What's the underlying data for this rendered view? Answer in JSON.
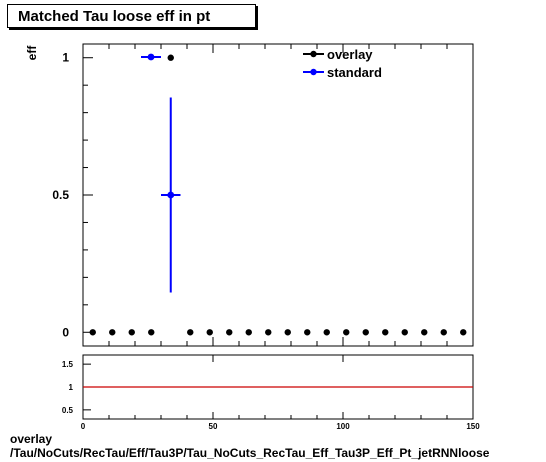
{
  "chart_data": [
    {
      "type": "scatter",
      "title": "Matched Tau loose eff in pt",
      "ylabel": "eff",
      "xlim": [
        0,
        150
      ],
      "ylim": [
        -0.05,
        1.05
      ],
      "y_ticks": [
        "0",
        "0.5",
        "1"
      ],
      "y_tick_values": [
        0,
        0.5,
        1
      ],
      "x_ticks": [
        "0",
        "50",
        "100",
        "150"
      ],
      "x_tick_values": [
        0,
        50,
        100,
        150
      ],
      "legend_position": "top-right",
      "series": [
        {
          "name": "overlay",
          "color": "#000000",
          "points": [
            {
              "x": 3.75,
              "y": 0
            },
            {
              "x": 11.25,
              "y": 0
            },
            {
              "x": 18.75,
              "y": 0
            },
            {
              "x": 26.25,
              "y": 0
            },
            {
              "x": 33.75,
              "y": 1
            },
            {
              "x": 41.25,
              "y": 0
            },
            {
              "x": 48.75,
              "y": 0
            },
            {
              "x": 56.25,
              "y": 0
            },
            {
              "x": 63.75,
              "y": 0
            },
            {
              "x": 71.25,
              "y": 0
            },
            {
              "x": 78.75,
              "y": 0
            },
            {
              "x": 86.25,
              "y": 0
            },
            {
              "x": 93.75,
              "y": 0
            },
            {
              "x": 101.25,
              "y": 0
            },
            {
              "x": 108.75,
              "y": 0
            },
            {
              "x": 116.25,
              "y": 0
            },
            {
              "x": 123.75,
              "y": 0
            },
            {
              "x": 131.25,
              "y": 0
            },
            {
              "x": 138.75,
              "y": 0
            },
            {
              "x": 146.25,
              "y": 0
            }
          ]
        },
        {
          "name": "standard",
          "color": "#0000ff",
          "points": [
            {
              "x": 33.75,
              "y": 0.5,
              "xerr": 3.75,
              "yerr_low": 0.355,
              "yerr_high": 0.355
            }
          ]
        }
      ]
    },
    {
      "type": "line",
      "title": "",
      "ylabel": "",
      "xlim": [
        0,
        150
      ],
      "ylim": [
        0.3,
        1.7
      ],
      "y_ticks": [
        "0.5",
        "1",
        "1.5"
      ],
      "y_tick_values": [
        0.5,
        1,
        1.5
      ],
      "x_ticks": [
        "0",
        "50",
        "100",
        "150"
      ],
      "x_tick_values": [
        0,
        50,
        100,
        150
      ],
      "series": [
        {
          "color": "#cc0000",
          "x": [
            0,
            150
          ],
          "values": [
            1,
            1
          ]
        }
      ]
    }
  ],
  "footer": {
    "label": "overlay",
    "path": "/Tau/NoCuts/RecTau/Eff/Tau3P/Tau_NoCuts_RecTau_Eff_Tau3P_Eff_Pt_jetRNNloose"
  }
}
